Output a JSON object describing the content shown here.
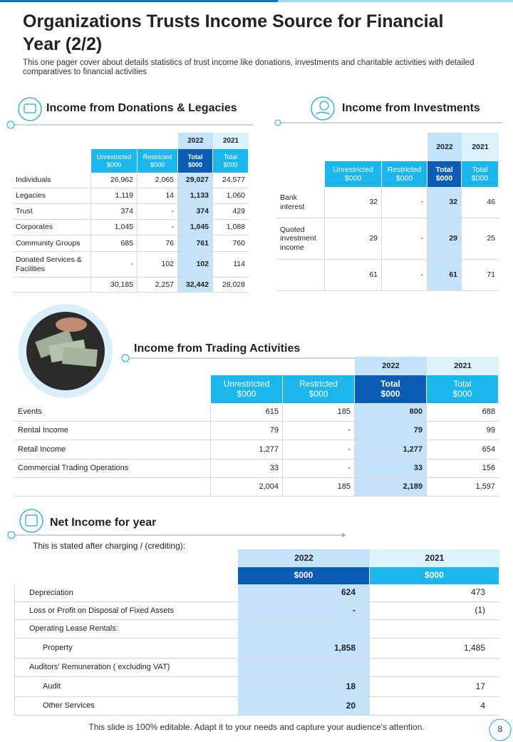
{
  "header": {
    "title": "Organizations Trusts Income Source for Financial Year (2/2)",
    "subtitle": "This one pager cover about details statistics of trust income like donations, investments and charitable activities with detailed comparatives to financial activities"
  },
  "donations": {
    "title": "Income from Donations & Legacies",
    "years": [
      "2022",
      "2021"
    ],
    "columns": [
      {
        "name": "Unrestricted",
        "unit": "$000"
      },
      {
        "name": "Restricted",
        "unit": "$000"
      },
      {
        "name": "Total",
        "unit": "$000"
      },
      {
        "name": "Total",
        "unit": "$000"
      }
    ],
    "rows": [
      {
        "label": "Individuals",
        "values": [
          "26,962",
          "2,065",
          "29,027",
          "24,577"
        ]
      },
      {
        "label": "Legacies",
        "values": [
          "1,119",
          "14",
          "1,133",
          "1,060"
        ]
      },
      {
        "label": "Trust",
        "values": [
          "374",
          "-",
          "374",
          "429"
        ]
      },
      {
        "label": "Corporates",
        "values": [
          "1,045",
          "-",
          "1,045",
          "1,088"
        ]
      },
      {
        "label": "Community  Groups",
        "values": [
          "685",
          "76",
          "761",
          "760"
        ]
      },
      {
        "label": "Donated Services & Facilities",
        "values": [
          "-",
          "102",
          "102",
          "114"
        ]
      },
      {
        "values": [
          "30,185",
          "2,257",
          "32,442",
          "28,028"
        ]
      }
    ]
  },
  "investments": {
    "title": "Income from Investments",
    "years": [
      "2022",
      "2021"
    ],
    "columns": [
      {
        "name": "Unrestricted",
        "unit": "$000"
      },
      {
        "name": "Restricted",
        "unit": "$000"
      },
      {
        "name": "Total",
        "unit": "$000"
      },
      {
        "name": "Total",
        "unit": "$000"
      }
    ],
    "rows": [
      {
        "label": "Bank interest",
        "values": [
          "32",
          "-",
          "32",
          "46"
        ]
      },
      {
        "label": "Quoted investment income",
        "values": [
          "29",
          "-",
          "29",
          "25"
        ]
      },
      {
        "values": [
          "61",
          "-",
          "61",
          "71"
        ]
      }
    ]
  },
  "trading": {
    "title": "Income from  Trading Activities",
    "years": [
      "2022",
      "2021"
    ],
    "columns": [
      {
        "name": "Unrestricted",
        "unit": "$000"
      },
      {
        "name": "Restricted",
        "unit": "$000"
      },
      {
        "name": "Total",
        "unit": "$000"
      },
      {
        "name": "Total",
        "unit": "$000"
      }
    ],
    "rows": [
      {
        "label": "Events",
        "values": [
          "615",
          "185",
          "800",
          "688"
        ]
      },
      {
        "label": "Rental Income",
        "values": [
          "79",
          "-",
          "79",
          "99"
        ]
      },
      {
        "label": "Retail Income",
        "values": [
          "1,277",
          "-",
          "1,277",
          "654"
        ]
      },
      {
        "label": "Commercial Trading Operations",
        "values": [
          "33",
          "-",
          "33",
          "156"
        ]
      },
      {
        "values": [
          "2,004",
          "185",
          "2,189",
          "1,597"
        ]
      }
    ]
  },
  "net_income": {
    "title": "Net Income for year",
    "note": "This is stated after charging / (crediting):",
    "years": [
      "2022",
      "2021"
    ],
    "units": [
      "$000",
      "$000"
    ],
    "rows": [
      {
        "label": "Depreciation",
        "values": [
          "624",
          "473"
        ]
      },
      {
        "label": "Loss or Profit on Disposal of Fixed Assets",
        "values": [
          "-",
          "(1)"
        ]
      },
      {
        "label": "Operating Lease Rentals:"
      },
      {
        "label": "Property",
        "values": [
          "1,858",
          "1,485"
        ]
      },
      {
        "label": "Auditors' Remuneration  ( excluding VAT)"
      },
      {
        "label": "Audit",
        "values": [
          "18",
          "17"
        ]
      },
      {
        "label": "Other Services",
        "values": [
          "20",
          "4"
        ]
      }
    ]
  },
  "footer": {
    "note": "This slide is 100% editable. Adapt it to your needs and capture your audience's attention.",
    "page": "8"
  }
}
